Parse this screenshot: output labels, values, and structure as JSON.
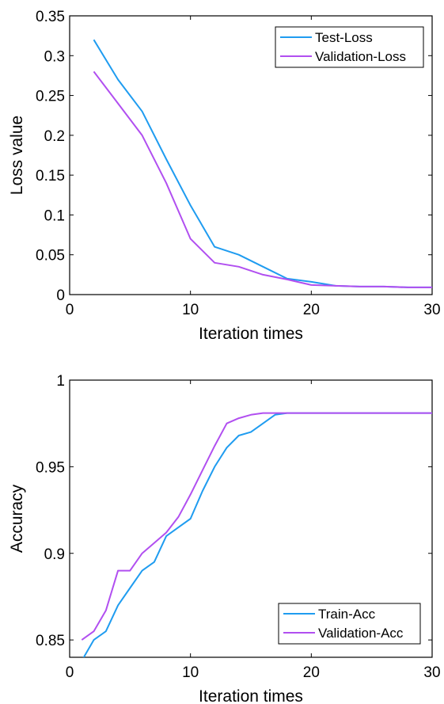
{
  "chart_data": [
    {
      "type": "line",
      "xlabel": "Iteration times",
      "ylabel": "Loss value",
      "xlim": [
        0,
        30
      ],
      "ylim": [
        0,
        0.35
      ],
      "xticks": [
        "0",
        "10",
        "20",
        "30"
      ],
      "yticks": [
        "0",
        "0.05",
        "0.1",
        "0.15",
        "0.2",
        "0.25",
        "0.3",
        "0.35"
      ],
      "grid": false,
      "legend_position": "top-right",
      "series": [
        {
          "name": "Test-Loss",
          "color": "#1f9cf0",
          "points": [
            [
              2,
              0.32
            ],
            [
              4,
              0.27
            ],
            [
              6,
              0.23
            ],
            [
              8,
              0.17
            ],
            [
              10,
              0.112
            ],
            [
              12,
              0.06
            ],
            [
              14,
              0.05
            ],
            [
              16,
              0.035
            ],
            [
              18,
              0.02
            ],
            [
              20,
              0.016
            ],
            [
              22,
              0.011
            ],
            [
              24,
              0.01
            ],
            [
              26,
              0.01
            ],
            [
              28,
              0.009
            ],
            [
              30,
              0.009
            ]
          ]
        },
        {
          "name": "Validation-Loss",
          "color": "#b14ff0",
          "points": [
            [
              2,
              0.28
            ],
            [
              4,
              0.24
            ],
            [
              6,
              0.2
            ],
            [
              8,
              0.14
            ],
            [
              10,
              0.07
            ],
            [
              12,
              0.04
            ],
            [
              14,
              0.035
            ],
            [
              16,
              0.025
            ],
            [
              18,
              0.019
            ],
            [
              20,
              0.012
            ],
            [
              22,
              0.011
            ],
            [
              24,
              0.01
            ],
            [
              26,
              0.01
            ],
            [
              28,
              0.009
            ],
            [
              30,
              0.009
            ]
          ]
        }
      ]
    },
    {
      "type": "line",
      "xlabel": "Iteration times",
      "ylabel": "Accuracy",
      "xlim": [
        0,
        30
      ],
      "ylim": [
        0.84,
        1.0
      ],
      "xticks": [
        "0",
        "10",
        "20",
        "30"
      ],
      "yticks": [
        "0.85",
        "0.9",
        "0.95",
        "1"
      ],
      "grid": false,
      "legend_position": "bottom-right",
      "series": [
        {
          "name": "Train-Acc",
          "color": "#1f9cf0",
          "points": [
            [
              1,
              0.838
            ],
            [
              2,
              0.85
            ],
            [
              3,
              0.855
            ],
            [
              4,
              0.87
            ],
            [
              5,
              0.88
            ],
            [
              6,
              0.89
            ],
            [
              7,
              0.895
            ],
            [
              8,
              0.91
            ],
            [
              9,
              0.915
            ],
            [
              10,
              0.92
            ],
            [
              11,
              0.936
            ],
            [
              12,
              0.95
            ],
            [
              13,
              0.961
            ],
            [
              14,
              0.968
            ],
            [
              15,
              0.97
            ],
            [
              16,
              0.975
            ],
            [
              17,
              0.98
            ],
            [
              18,
              0.981
            ],
            [
              20,
              0.981
            ],
            [
              25,
              0.981
            ],
            [
              30,
              0.981
            ]
          ]
        },
        {
          "name": "Validation-Acc",
          "color": "#b14ff0",
          "points": [
            [
              1,
              0.85
            ],
            [
              2,
              0.855
            ],
            [
              3,
              0.867
            ],
            [
              4,
              0.89
            ],
            [
              5,
              0.89
            ],
            [
              6,
              0.9
            ],
            [
              7,
              0.906
            ],
            [
              8,
              0.912
            ],
            [
              9,
              0.921
            ],
            [
              10,
              0.934
            ],
            [
              11,
              0.948
            ],
            [
              12,
              0.962
            ],
            [
              13,
              0.975
            ],
            [
              14,
              0.978
            ],
            [
              15,
              0.98
            ],
            [
              16,
              0.981
            ],
            [
              17,
              0.981
            ],
            [
              20,
              0.981
            ],
            [
              25,
              0.981
            ],
            [
              30,
              0.981
            ]
          ]
        }
      ]
    }
  ]
}
